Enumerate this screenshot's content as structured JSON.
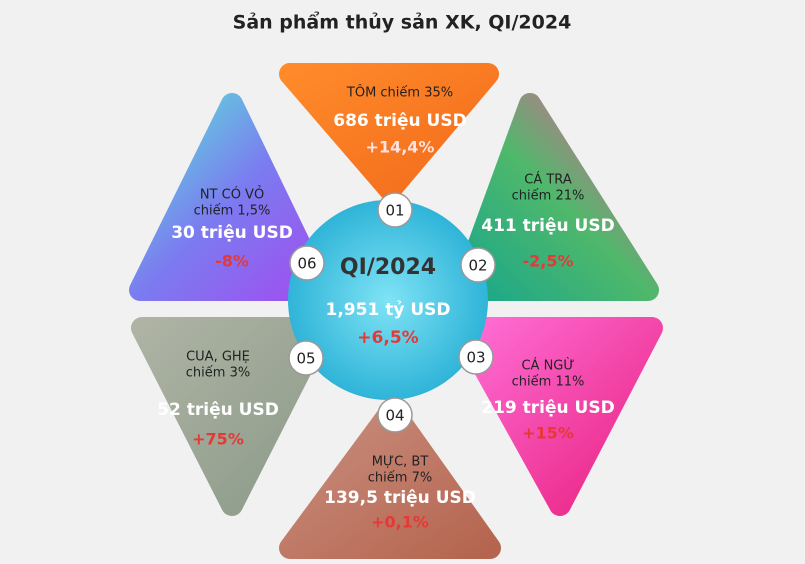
{
  "title": "Sản phẩm thủy sản XK, QI/2024",
  "center": {
    "period": "QI/2024",
    "value": "1,951 tỷ USD",
    "change": "+6,5%"
  },
  "segments": [
    {
      "number": "01",
      "lines": [
        "TÔM chiếm 35%"
      ],
      "value": "686 triệu USD",
      "change": "+14,4%"
    },
    {
      "number": "02",
      "lines": [
        "CÁ TRA",
        "chiếm 21%"
      ],
      "value": "411 triệu USD",
      "change": "-2,5%"
    },
    {
      "number": "03",
      "lines": [
        "CÁ NGỪ",
        "chiếm 11%"
      ],
      "value": "219 triệu USD",
      "change": "+15%"
    },
    {
      "number": "04",
      "lines": [
        "MỰC, BT",
        "chiếm 7%"
      ],
      "value": "139,5 triệu USD",
      "change": "+0,1%"
    },
    {
      "number": "05",
      "lines": [
        "CUA, GHẸ",
        "chiếm 3%"
      ],
      "value": "52 triệu USD",
      "change": "+75%"
    },
    {
      "number": "06",
      "lines": [
        "NT CÓ VỎ",
        "chiếm 1,5%"
      ],
      "value": "30 triệu USD",
      "change": "-8%"
    }
  ]
}
